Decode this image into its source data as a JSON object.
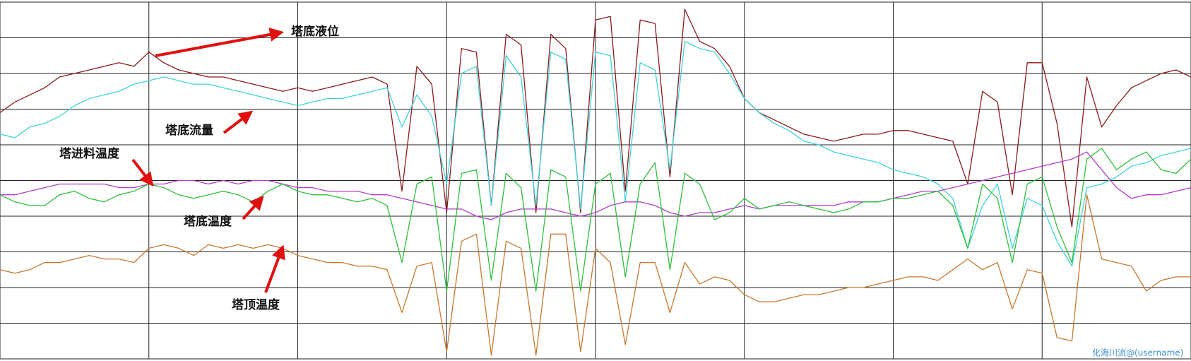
{
  "chart_data": {
    "type": "line",
    "x": [
      0,
      0.1,
      0.2,
      0.3,
      0.4,
      0.5,
      0.6,
      0.7,
      0.8,
      0.9,
      1,
      1.1,
      1.2,
      1.3,
      1.4,
      1.5,
      1.6,
      1.7,
      1.8,
      1.9,
      2,
      2.1,
      2.2,
      2.3,
      2.4,
      2.5,
      2.6,
      2.7,
      2.8,
      2.9,
      3,
      3.1,
      3.2,
      3.3,
      3.4,
      3.5,
      3.6,
      3.7,
      3.8,
      3.9,
      4,
      4.1,
      4.2,
      4.3,
      4.4,
      4.5,
      4.6,
      4.7,
      4.8,
      4.9,
      5,
      5.1,
      5.2,
      5.3,
      5.4,
      5.5,
      5.6,
      5.7,
      5.8,
      5.9,
      6,
      6.1,
      6.2,
      6.3,
      6.4,
      6.5,
      6.6,
      6.7,
      6.8,
      6.9,
      7,
      7.1,
      7.2,
      7.3,
      7.4,
      7.5,
      7.6,
      7.7,
      7.8,
      7.9,
      8
    ],
    "series": [
      {
        "name": "塔底液位",
        "color": "#8b1a1a",
        "values": [
          6.9,
          7.2,
          7.4,
          7.6,
          7.9,
          8.0,
          8.1,
          8.2,
          8.3,
          8.2,
          8.6,
          8.3,
          8.1,
          8.0,
          7.9,
          7.9,
          7.8,
          7.7,
          7.6,
          7.5,
          7.6,
          7.5,
          7.6,
          7.7,
          7.8,
          7.9,
          7.7,
          4.7,
          8.2,
          7.7,
          4.1,
          8.7,
          8.6,
          4.3,
          9.1,
          8.8,
          4.1,
          9.1,
          8.7,
          4.1,
          9.5,
          9.6,
          4.7,
          9.5,
          9.4,
          5.1,
          9.8,
          8.9,
          8.7,
          8.2,
          7.3,
          6.9,
          6.7,
          6.5,
          6.3,
          6.2,
          6.1,
          6.2,
          6.3,
          6.3,
          6.4,
          6.4,
          6.3,
          6.2,
          6.1,
          4.9,
          7.5,
          7.2,
          4.6,
          8.3,
          8.3,
          6.6,
          3.7,
          7.9,
          6.5,
          7.1,
          7.6,
          7.8,
          8.0,
          8.1,
          7.9
        ]
      },
      {
        "name": "塔底流量",
        "color": "#3fd3d8",
        "values": [
          6.3,
          6.2,
          6.5,
          6.6,
          6.8,
          7.1,
          7.3,
          7.4,
          7.5,
          7.7,
          7.8,
          7.9,
          7.8,
          7.7,
          7.7,
          7.6,
          7.5,
          7.4,
          7.3,
          7.2,
          7.1,
          7.2,
          7.3,
          7.3,
          7.4,
          7.5,
          7.6,
          6.5,
          7.4,
          6.8,
          4.9,
          8.0,
          8.2,
          4.3,
          8.5,
          7.9,
          4.3,
          8.6,
          8.4,
          4.2,
          8.6,
          8.5,
          4.4,
          8.3,
          8.1,
          5.3,
          8.9,
          8.7,
          8.6,
          8.0,
          7.3,
          6.9,
          6.6,
          6.4,
          6.1,
          6.0,
          5.8,
          5.7,
          5.6,
          5.5,
          5.3,
          5.2,
          5.1,
          4.9,
          4.5,
          3.1,
          4.3,
          4.9,
          3.1,
          4.5,
          4.3,
          3.3,
          2.6,
          4.8,
          4.9,
          5.1,
          5.4,
          5.5,
          5.7,
          5.8,
          5.9
        ]
      },
      {
        "name": "塔进料温度",
        "color": "#b23cc8",
        "values": [
          4.6,
          4.6,
          4.7,
          4.8,
          4.9,
          4.9,
          4.9,
          4.9,
          4.8,
          4.8,
          4.9,
          4.9,
          5.0,
          5.0,
          4.9,
          5.0,
          4.9,
          5.0,
          5.0,
          4.9,
          4.8,
          4.8,
          4.7,
          4.7,
          4.7,
          4.6,
          4.6,
          4.5,
          4.4,
          4.3,
          4.2,
          4.2,
          4.0,
          3.9,
          4.1,
          4.2,
          4.2,
          4.2,
          4.1,
          4.0,
          4.1,
          4.3,
          4.4,
          4.4,
          4.3,
          4.1,
          4.0,
          4.1,
          4.1,
          4.2,
          4.3,
          4.2,
          4.3,
          4.3,
          4.3,
          4.3,
          4.3,
          4.4,
          4.4,
          4.4,
          4.5,
          4.6,
          4.7,
          4.7,
          4.8,
          4.9,
          5.0,
          5.1,
          5.2,
          5.3,
          5.4,
          5.5,
          5.6,
          5.8,
          5.3,
          4.8,
          4.5,
          4.6,
          4.6,
          4.7,
          4.8
        ]
      },
      {
        "name": "塔底温度",
        "color": "#2fbf3a",
        "values": [
          4.6,
          4.4,
          4.3,
          4.3,
          4.6,
          4.7,
          4.5,
          4.4,
          4.6,
          4.7,
          4.9,
          4.8,
          4.6,
          4.5,
          4.6,
          4.7,
          4.6,
          4.4,
          4.7,
          4.9,
          4.7,
          4.6,
          4.6,
          4.5,
          4.4,
          4.5,
          4.3,
          2.7,
          4.9,
          5.1,
          1.9,
          5.2,
          5.3,
          2.2,
          5.2,
          4.8,
          1.9,
          5.3,
          5.1,
          1.9,
          4.9,
          5.2,
          2.3,
          4.9,
          5.5,
          2.5,
          5.2,
          4.9,
          3.9,
          4.1,
          4.5,
          4.2,
          4.3,
          4.4,
          4.3,
          4.2,
          4.1,
          4.2,
          4.4,
          4.4,
          4.5,
          4.5,
          4.6,
          4.7,
          4.3,
          3.1,
          4.9,
          4.5,
          2.7,
          4.9,
          5.1,
          3.7,
          2.7,
          5.6,
          5.9,
          5.3,
          5.6,
          5.8,
          5.3,
          5.2,
          5.6
        ]
      },
      {
        "name": "塔顶温度",
        "color": "#c8782e",
        "values": [
          2.5,
          2.4,
          2.5,
          2.7,
          2.7,
          2.8,
          2.9,
          2.8,
          2.8,
          2.7,
          3.1,
          3.2,
          3.1,
          2.9,
          3.2,
          3.1,
          3.2,
          3.1,
          3.2,
          3.1,
          2.9,
          2.8,
          2.7,
          2.7,
          2.6,
          2.6,
          2.5,
          1.3,
          2.6,
          2.7,
          0.2,
          3.3,
          3.5,
          0.1,
          3.3,
          3.1,
          0.1,
          3.5,
          3.5,
          0.2,
          3.1,
          2.7,
          0.4,
          2.7,
          2.7,
          1.3,
          2.7,
          2.1,
          2.3,
          2.2,
          1.8,
          1.6,
          1.6,
          1.7,
          1.8,
          1.8,
          1.9,
          2.0,
          2.0,
          2.1,
          2.2,
          2.3,
          2.3,
          2.2,
          2.5,
          2.8,
          2.5,
          2.7,
          1.4,
          2.5,
          2.4,
          0.6,
          0.5,
          4.6,
          2.8,
          2.7,
          2.6,
          1.9,
          2.2,
          2.3,
          2.3
        ]
      }
    ],
    "xlim": [
      0,
      8
    ],
    "xticks": [
      0,
      1,
      2,
      3,
      4,
      5,
      6,
      7,
      8
    ],
    "ylim": [
      0,
      10
    ],
    "yticks": [
      0,
      1,
      2,
      3,
      4,
      5,
      6,
      7,
      8,
      9,
      10
    ],
    "grid": true,
    "annotations": [
      {
        "text": "塔底液位"
      },
      {
        "text": "塔底流量"
      },
      {
        "text": "塔进料温度"
      },
      {
        "text": "塔底温度"
      },
      {
        "text": "塔顶温度"
      }
    ],
    "watermark": "化海川流@(username)"
  }
}
